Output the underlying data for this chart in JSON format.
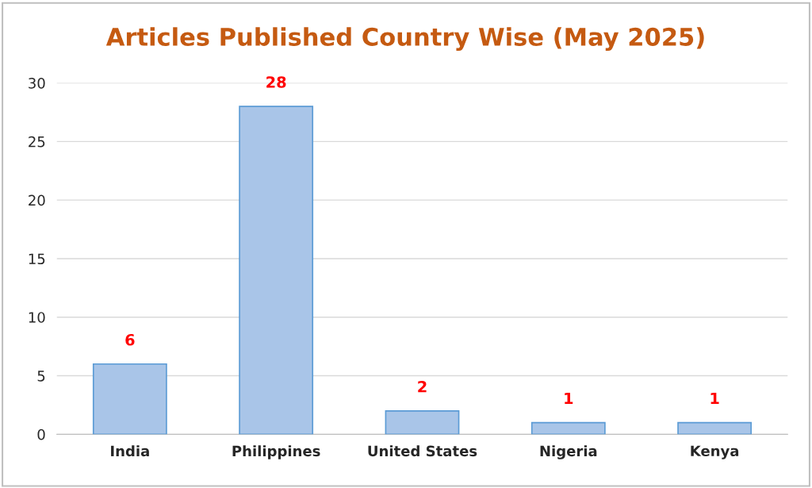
{
  "chart_data": {
    "type": "bar",
    "title": "Articles Published Country Wise (May 2025)",
    "categories": [
      "India",
      "Philippines",
      "United States",
      "Nigeria",
      "Kenya"
    ],
    "values": [
      6,
      28,
      2,
      1,
      1
    ],
    "color": "#a9c5e8",
    "ylim": [
      0,
      30
    ],
    "yticks": [
      0,
      5,
      10,
      15,
      20,
      25,
      30
    ],
    "grid": "y",
    "data_labels": true,
    "legend": false
  }
}
